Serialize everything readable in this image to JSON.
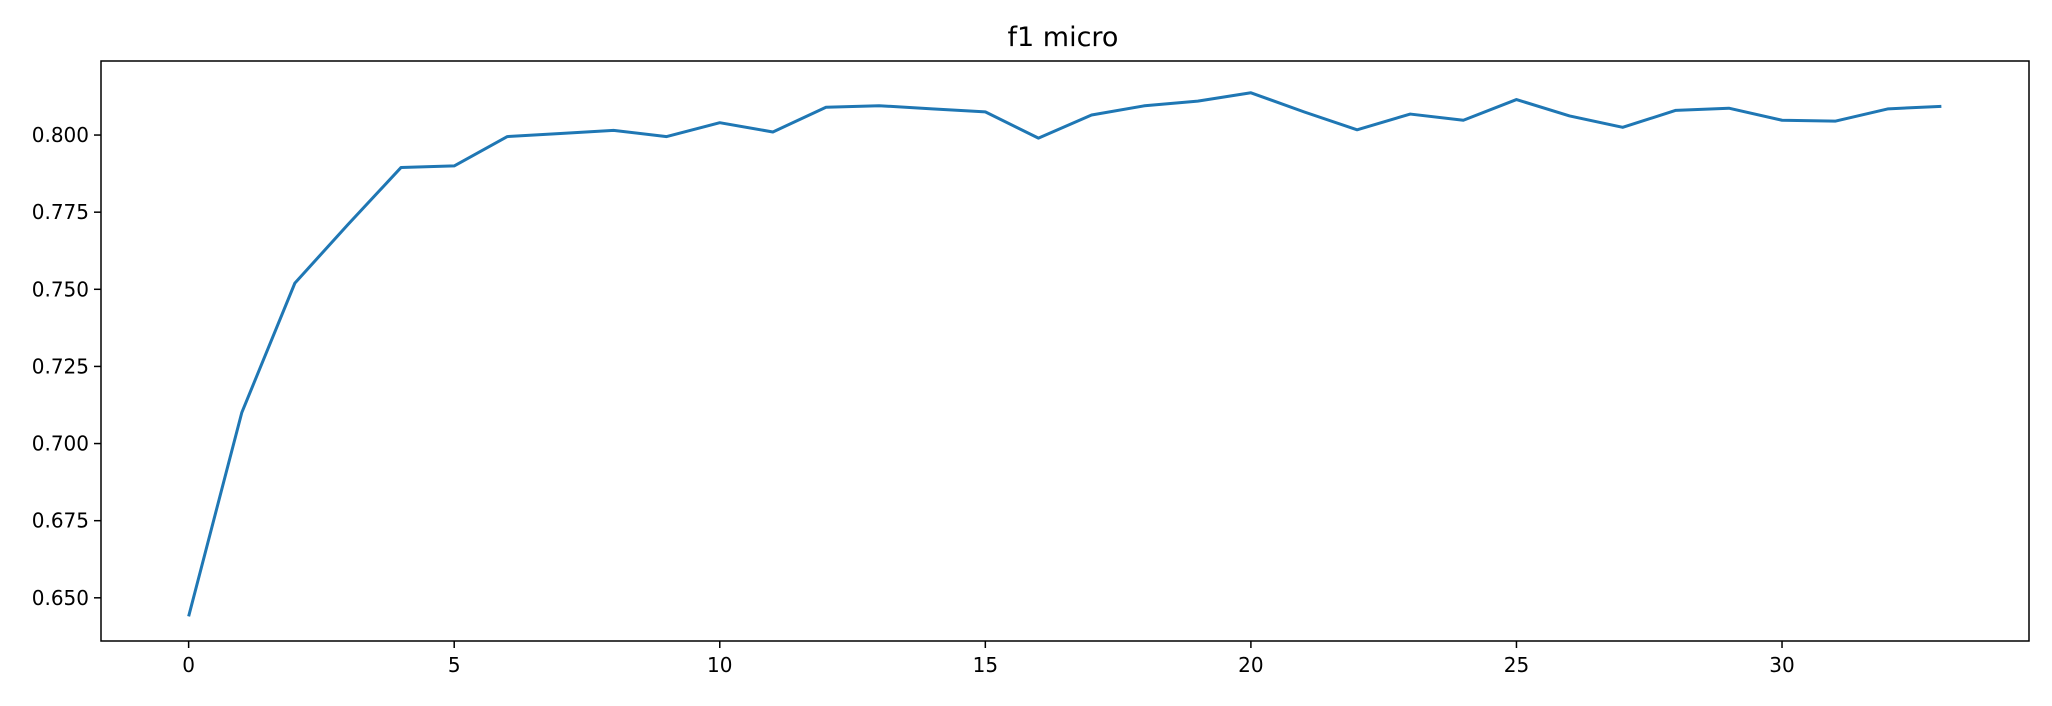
{
  "chart_data": {
    "type": "line",
    "title": "f1 micro",
    "xlabel": "",
    "ylabel": "",
    "xlim": [
      -1.65,
      34.65
    ],
    "ylim": [
      0.636,
      0.824
    ],
    "xticks": [
      0,
      5,
      10,
      15,
      20,
      25,
      30
    ],
    "xtick_labels": [
      "0",
      "5",
      "10",
      "15",
      "20",
      "25",
      "30"
    ],
    "yticks": [
      0.65,
      0.675,
      0.7,
      0.725,
      0.75,
      0.775,
      0.8
    ],
    "ytick_labels": [
      "0.650",
      "0.675",
      "0.700",
      "0.725",
      "0.750",
      "0.775",
      "0.800"
    ],
    "grid": false,
    "series": [
      {
        "color": "#1f77b4",
        "x": [
          0,
          1,
          2,
          3,
          4,
          5,
          6,
          7,
          8,
          9,
          10,
          11,
          12,
          13,
          14,
          15,
          16,
          17,
          18,
          19,
          20,
          21,
          22,
          23,
          24,
          25,
          26,
          27,
          28,
          29,
          30,
          31,
          32,
          33
        ],
        "y": [
          0.644,
          0.71,
          0.752,
          0.771,
          0.7895,
          0.79,
          0.7995,
          0.8005,
          0.8015,
          0.7995,
          0.804,
          0.801,
          0.809,
          0.8095,
          0.8085,
          0.8075,
          0.799,
          0.8065,
          0.8095,
          0.811,
          0.8137,
          0.8075,
          0.8017,
          0.8068,
          0.8048,
          0.8115,
          0.8062,
          0.8025,
          0.808,
          0.8087,
          0.8048,
          0.8045,
          0.8085,
          0.8093
        ]
      }
    ]
  }
}
